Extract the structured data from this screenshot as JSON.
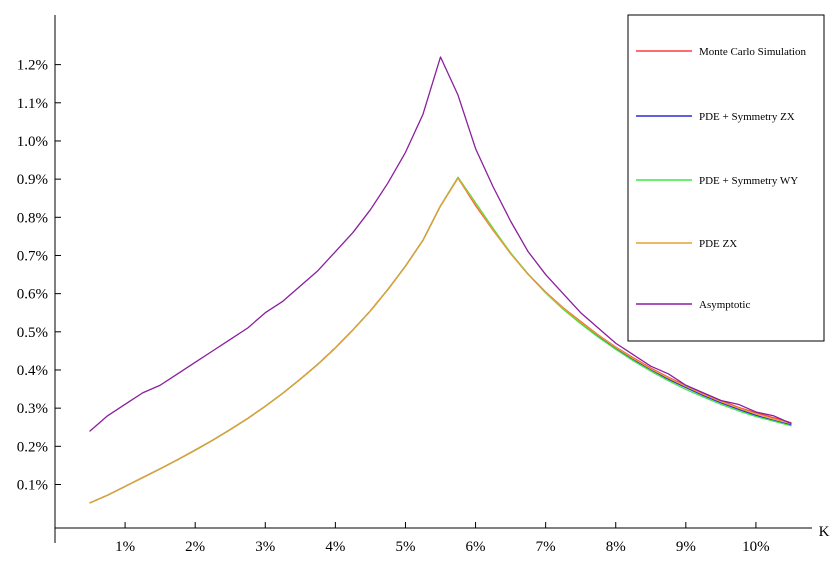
{
  "chart_data": {
    "type": "line",
    "title": "",
    "xlabel": "K",
    "ylabel": "",
    "xlim": [
      0.0,
      0.108
    ],
    "ylim": [
      -0.00014,
      0.0133
    ],
    "x_ticks": [
      {
        "value": 0.01,
        "label": "1%"
      },
      {
        "value": 0.02,
        "label": "2%"
      },
      {
        "value": 0.03,
        "label": "3%"
      },
      {
        "value": 0.04,
        "label": "4%"
      },
      {
        "value": 0.05,
        "label": "5%"
      },
      {
        "value": 0.06,
        "label": "6%"
      },
      {
        "value": 0.07,
        "label": "7%"
      },
      {
        "value": 0.08,
        "label": "8%"
      },
      {
        "value": 0.09,
        "label": "9%"
      },
      {
        "value": 0.1,
        "label": "10%"
      }
    ],
    "y_ticks": [
      {
        "value": 0.001,
        "label": "0.1%"
      },
      {
        "value": 0.002,
        "label": "0.2%"
      },
      {
        "value": 0.003,
        "label": "0.3%"
      },
      {
        "value": 0.004,
        "label": "0.4%"
      },
      {
        "value": 0.005,
        "label": "0.5%"
      },
      {
        "value": 0.006,
        "label": "0.6%"
      },
      {
        "value": 0.007,
        "label": "0.7%"
      },
      {
        "value": 0.008,
        "label": "0.8%"
      },
      {
        "value": 0.009,
        "label": "0.9%"
      },
      {
        "value": 0.01,
        "label": "1.0%"
      },
      {
        "value": 0.011,
        "label": "1.1%"
      },
      {
        "value": 0.012,
        "label": "1.2%"
      }
    ],
    "grid": false,
    "legend_position": "top-right",
    "x": [
      0.005,
      0.0075,
      0.01,
      0.0125,
      0.015,
      0.0175,
      0.02,
      0.0225,
      0.025,
      0.0275,
      0.03,
      0.0325,
      0.035,
      0.0375,
      0.04,
      0.0425,
      0.045,
      0.0475,
      0.05,
      0.0525,
      0.055,
      0.0575,
      0.06,
      0.0625,
      0.065,
      0.0675,
      0.07,
      0.0725,
      0.075,
      0.0775,
      0.08,
      0.0825,
      0.085,
      0.0875,
      0.09,
      0.0925,
      0.095,
      0.0975,
      0.1,
      0.1025,
      0.105
    ],
    "series": [
      {
        "name": "Monte Carlo Simulation",
        "color": "#ff3b3b",
        "values": [
          0.00052,
          0.00072,
          0.00095,
          0.00118,
          0.00141,
          0.00165,
          0.0019,
          0.00216,
          0.00244,
          0.00273,
          0.00305,
          0.00339,
          0.00376,
          0.00415,
          0.00458,
          0.00505,
          0.00555,
          0.00611,
          0.00672,
          0.0074,
          0.0083,
          0.00903,
          0.00831,
          0.00766,
          0.00705,
          0.00651,
          0.00604,
          0.00563,
          0.00527,
          0.00492,
          0.0046,
          0.00432,
          0.00405,
          0.00381,
          0.00359,
          0.00339,
          0.0032,
          0.00302,
          0.00288,
          0.00275,
          0.00262
        ]
      },
      {
        "name": "PDE + Symmetry ZX",
        "color": "#2b2bd9",
        "values": [
          0.00052,
          0.00072,
          0.00095,
          0.00118,
          0.00141,
          0.00165,
          0.0019,
          0.00216,
          0.00244,
          0.00273,
          0.00305,
          0.00339,
          0.00376,
          0.00415,
          0.00458,
          0.00505,
          0.00555,
          0.00611,
          0.00672,
          0.0074,
          0.0083,
          0.00904,
          0.00835,
          0.00768,
          0.00706,
          0.00651,
          0.00603,
          0.00561,
          0.00523,
          0.00489,
          0.00457,
          0.00428,
          0.00401,
          0.00376,
          0.00354,
          0.00333,
          0.00314,
          0.00297,
          0.00281,
          0.00268,
          0.00256
        ]
      },
      {
        "name": "PDE + Symmetry WY",
        "color": "#3ee83e",
        "values": [
          0.00052,
          0.00072,
          0.00095,
          0.00118,
          0.00141,
          0.00165,
          0.0019,
          0.00216,
          0.00244,
          0.00273,
          0.00305,
          0.00339,
          0.00376,
          0.00415,
          0.00458,
          0.00505,
          0.00555,
          0.00611,
          0.00672,
          0.0074,
          0.0083,
          0.00905,
          0.00838,
          0.00771,
          0.00707,
          0.00651,
          0.00602,
          0.00559,
          0.00521,
          0.00486,
          0.00454,
          0.00424,
          0.00397,
          0.00372,
          0.00349,
          0.00329,
          0.0031,
          0.00293,
          0.00278,
          0.00266,
          0.00254
        ]
      },
      {
        "name": "PDE ZX",
        "color": "#e8a030",
        "values": [
          0.00052,
          0.00072,
          0.00095,
          0.00118,
          0.00141,
          0.00165,
          0.0019,
          0.00216,
          0.00244,
          0.00273,
          0.00305,
          0.00339,
          0.00376,
          0.00415,
          0.00458,
          0.00505,
          0.00555,
          0.00611,
          0.00672,
          0.0074,
          0.0083,
          0.00903,
          0.00834,
          0.00767,
          0.00705,
          0.0065,
          0.00603,
          0.00562,
          0.00525,
          0.00491,
          0.00459,
          0.0043,
          0.00403,
          0.00379,
          0.00357,
          0.00336,
          0.00317,
          0.003,
          0.00285,
          0.00272,
          0.0026
        ]
      },
      {
        "name": "Asymptotic",
        "color": "#8a1f9e",
        "values": [
          0.0024,
          0.0028,
          0.0031,
          0.0034,
          0.0036,
          0.0039,
          0.0042,
          0.0045,
          0.0048,
          0.0051,
          0.0055,
          0.0058,
          0.0062,
          0.0066,
          0.0071,
          0.0076,
          0.0082,
          0.0089,
          0.0097,
          0.0107,
          0.0122,
          0.0112,
          0.0098,
          0.0088,
          0.0079,
          0.0071,
          0.0065,
          0.006,
          0.0055,
          0.0051,
          0.0047,
          0.0044,
          0.0041,
          0.0039,
          0.0036,
          0.0034,
          0.0032,
          0.0031,
          0.0029,
          0.0028,
          0.0026
        ]
      }
    ]
  }
}
